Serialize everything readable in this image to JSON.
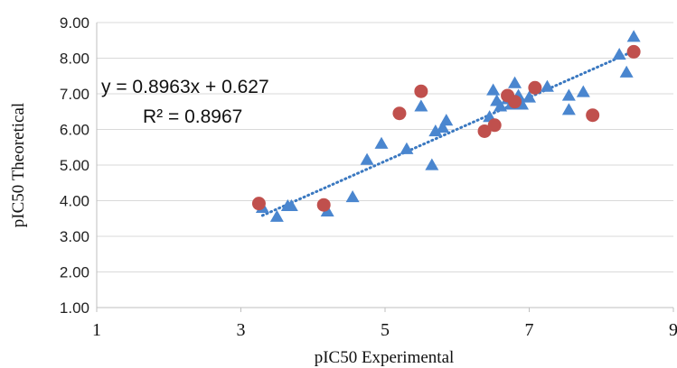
{
  "chart_data": {
    "type": "scatter",
    "title": "",
    "xlabel": "pIC50 Experimental",
    "ylabel": "pIC50 Theoretical",
    "xlim": [
      1,
      9
    ],
    "ylim": [
      1,
      9
    ],
    "x_ticks": [
      1,
      3,
      5,
      7,
      9
    ],
    "x_tick_labels": [
      "1",
      "3",
      "5",
      "7",
      "9"
    ],
    "y_ticks": [
      1,
      2,
      3,
      4,
      5,
      6,
      7,
      8,
      9
    ],
    "y_tick_labels": [
      "1.00",
      "2.00",
      "3.00",
      "4.00",
      "5.00",
      "6.00",
      "7.00",
      "8.00",
      "9.00"
    ],
    "grid": "horizontal",
    "legend": "none",
    "series": [
      {
        "marker": "triangle",
        "color": "#4a86cf",
        "points": [
          [
            3.3,
            3.8
          ],
          [
            3.5,
            3.55
          ],
          [
            3.65,
            3.85
          ],
          [
            3.7,
            3.85
          ],
          [
            4.2,
            3.7
          ],
          [
            4.55,
            4.1
          ],
          [
            4.75,
            5.15
          ],
          [
            4.95,
            5.6
          ],
          [
            5.3,
            5.45
          ],
          [
            5.5,
            6.65
          ],
          [
            5.65,
            5.0
          ],
          [
            5.7,
            5.95
          ],
          [
            5.8,
            6.05
          ],
          [
            5.85,
            6.25
          ],
          [
            6.45,
            6.35
          ],
          [
            6.5,
            7.1
          ],
          [
            6.55,
            6.8
          ],
          [
            6.6,
            6.65
          ],
          [
            6.7,
            6.85
          ],
          [
            6.75,
            6.7
          ],
          [
            6.8,
            7.3
          ],
          [
            6.85,
            6.95
          ],
          [
            6.9,
            6.7
          ],
          [
            7.0,
            6.9
          ],
          [
            7.25,
            7.2
          ],
          [
            7.55,
            6.55
          ],
          [
            7.55,
            6.95
          ],
          [
            7.75,
            7.05
          ],
          [
            8.25,
            8.1
          ],
          [
            8.35,
            7.6
          ],
          [
            8.45,
            8.6
          ]
        ]
      },
      {
        "marker": "circle",
        "color": "#c0504d",
        "points": [
          [
            3.25,
            3.92
          ],
          [
            4.15,
            3.88
          ],
          [
            5.2,
            6.45
          ],
          [
            5.5,
            7.07
          ],
          [
            6.38,
            5.95
          ],
          [
            6.52,
            6.12
          ],
          [
            6.7,
            6.95
          ],
          [
            6.8,
            6.78
          ],
          [
            7.08,
            7.17
          ],
          [
            7.88,
            6.4
          ],
          [
            8.45,
            8.18
          ]
        ]
      }
    ],
    "trendline": {
      "style": "dotted",
      "color": "#3a78c0",
      "slope": 0.8963,
      "intercept": 0.627,
      "x_range": [
        3.3,
        8.45
      ]
    },
    "annotations": {
      "equation": "y = 0.8963x + 0.627",
      "r_squared": "R² = 0.8967"
    }
  }
}
